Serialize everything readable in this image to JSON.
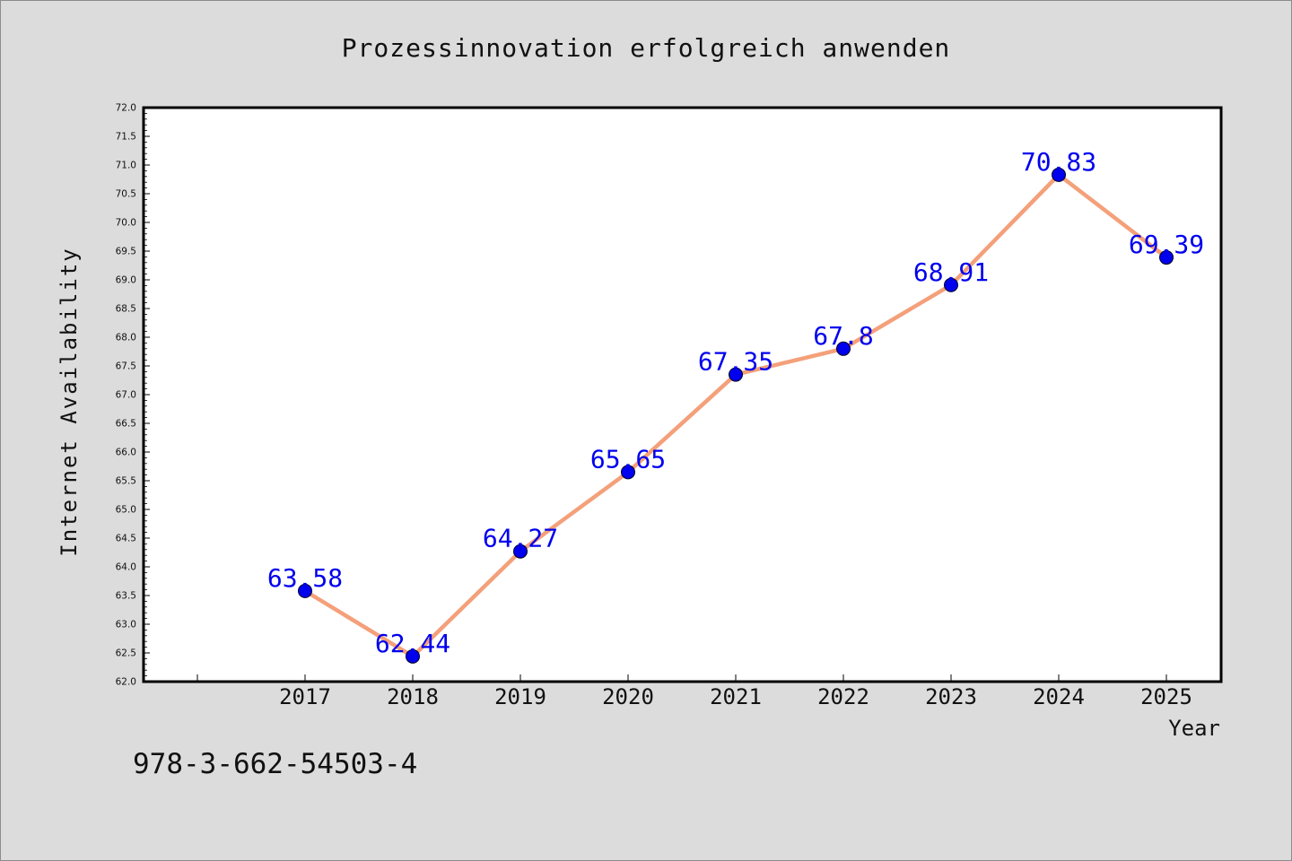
{
  "chart_data": {
    "type": "line",
    "title": "Prozessinnovation erfolgreich anwenden",
    "xlabel": "Year",
    "ylabel": "Internet Availability",
    "categories": [
      "2017",
      "2018",
      "2019",
      "2020",
      "2021",
      "2022",
      "2023",
      "2024",
      "2025"
    ],
    "series": [
      {
        "values": [
          63.58,
          62.44,
          64.27,
          65.65,
          67.35,
          67.8,
          68.91,
          70.83,
          69.39
        ],
        "data_labels": [
          "63.58",
          "62.44",
          "64.27",
          "65.65",
          "67.35",
          "67.8",
          "68.91",
          "70.83",
          "69.39"
        ],
        "line_color": "#f4a07a",
        "marker_color": "#0000ee"
      }
    ],
    "ylim": [
      62.0,
      72.0
    ],
    "y_ticks": [
      "62.0",
      "62.5",
      "63.0",
      "63.5",
      "64.0",
      "64.5",
      "65.0",
      "65.5",
      "66.0",
      "66.5",
      "67.0",
      "67.5",
      "68.0",
      "68.5",
      "69.0",
      "69.5",
      "70.0",
      "70.5",
      "71.0",
      "71.5",
      "72.0"
    ],
    "grid": false,
    "legend": "none",
    "label_color": "#0000ee"
  },
  "footer": {
    "isbn": "978-3-662-54503-4"
  },
  "colors": {
    "background": "#dcdcdc",
    "plot_background": "#ffffff",
    "axes": "#000000"
  }
}
